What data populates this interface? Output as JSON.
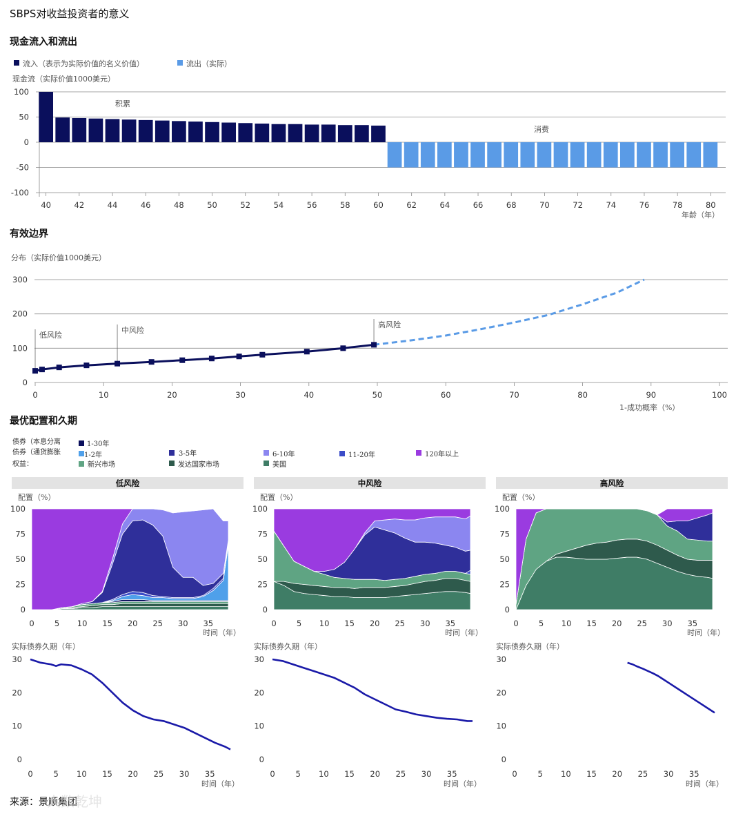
{
  "page": {
    "title": "SBPS对收益投资者的意义",
    "source": "来源：景顺集团",
    "watermark": "大数乾坤"
  },
  "colors": {
    "navy": "#0a0f5c",
    "lightblue": "#5a9be6",
    "dashed": "#5a9be6",
    "b1_30": "#0a0f5c",
    "b1_2": "#4fa0ea",
    "b3_5": "#2f2f9a",
    "b6_10": "#8b86f0",
    "b11_20": "#3b4cc8",
    "b120": "#9a3be0",
    "em": "#5fa483",
    "dev": "#2e5a4c",
    "us": "#3f7d66",
    "duration": "#1a1aa8",
    "panel": "#e3e3e3"
  },
  "chart_data": [
    {
      "type": "bar",
      "title": "现金流入和流出",
      "legend": [
        "流入（表示为实际价值的名义价值）",
        "流出（实际）"
      ],
      "ylabel": "现金流（实际价值1000美元）",
      "xlabel": "年龄（年）",
      "ylim": [
        -100,
        100
      ],
      "yticks": [
        100,
        50,
        0,
        -50,
        -100
      ],
      "xticks": [
        40,
        42,
        44,
        46,
        48,
        50,
        52,
        54,
        56,
        58,
        60,
        62,
        64,
        66,
        68,
        70,
        72,
        74,
        76,
        78,
        80
      ],
      "annotations": [
        "积累",
        "消费"
      ],
      "inflow": {
        "ages": [
          40,
          41,
          42,
          43,
          44,
          45,
          46,
          47,
          48,
          49,
          50,
          51,
          52,
          53,
          54,
          55,
          56,
          57,
          58,
          59,
          60
        ],
        "values": [
          100,
          49,
          48,
          47,
          46,
          45,
          44,
          43,
          42,
          41,
          40,
          39,
          38,
          37,
          36,
          36,
          35,
          35,
          34,
          34,
          33
        ]
      },
      "outflow": {
        "ages": [
          61,
          62,
          63,
          64,
          65,
          66,
          67,
          68,
          69,
          70,
          71,
          72,
          73,
          74,
          75,
          76,
          77,
          78,
          79,
          80
        ],
        "values": [
          -50,
          -50,
          -50,
          -50,
          -50,
          -50,
          -50,
          -50,
          -50,
          -50,
          -50,
          -50,
          -50,
          -50,
          -50,
          -50,
          -50,
          -50,
          -50,
          -50
        ]
      }
    },
    {
      "type": "line",
      "title": "有效边界",
      "ylabel": "分布（实际价值1000美元）",
      "xlabel": "1-成功概率（%）",
      "xlim": [
        0,
        100
      ],
      "ylim": [
        0,
        300
      ],
      "xticks": [
        0,
        10,
        20,
        30,
        40,
        50,
        60,
        70,
        80,
        90,
        100
      ],
      "yticks": [
        300,
        200,
        100,
        0
      ],
      "markers": [
        "低风险",
        "中风险",
        "高风险"
      ],
      "marker_x": [
        0,
        12,
        49.5
      ],
      "solid": {
        "x": [
          0,
          1,
          3.5,
          7.5,
          12,
          17,
          21.5,
          25.8,
          29.8,
          33.2,
          39.7,
          45,
          49.5
        ],
        "y": [
          34,
          38,
          44,
          50,
          55,
          60,
          65,
          70,
          76,
          81,
          90,
          100,
          110
        ]
      },
      "dashed": {
        "x": [
          49.5,
          55,
          60,
          65,
          70,
          75,
          80,
          85,
          89
        ],
        "y": [
          110,
          123,
          137,
          155,
          175,
          197,
          228,
          262,
          300
        ]
      }
    },
    {
      "type": "area",
      "title": "最优配置和久期",
      "legend_groups": [
        "债券（本息分离",
        "债券（通货膨胀",
        "权益："
      ],
      "legend": [
        "1-30年",
        "1-2年",
        "3-5年",
        "6-10年",
        "11-20年",
        "120年以上",
        "新兴市场",
        "发达国家市场",
        "美国"
      ],
      "panels": [
        "低风险",
        "中风险",
        "高风险"
      ],
      "ylabel": "配置（%）",
      "xlabel": "时间（年）",
      "xticks": [
        0,
        5,
        10,
        15,
        20,
        25,
        30,
        35
      ],
      "yticks": [
        100,
        75,
        50,
        25,
        0
      ]
    },
    {
      "type": "line",
      "title": "实际债券久期（年）",
      "xlabel": "时间（年）",
      "xticks": [
        0,
        5,
        10,
        15,
        20,
        25,
        30,
        35
      ],
      "yticks": [
        30,
        20,
        10,
        0
      ],
      "series": [
        {
          "name": "低风险",
          "x": [
            0,
            2,
            4,
            5,
            6,
            8,
            10,
            12,
            14,
            16,
            18,
            20,
            22,
            24,
            26,
            28,
            30,
            32,
            34,
            36,
            38,
            39
          ],
          "y": [
            30,
            29,
            28.5,
            28,
            28.5,
            28.2,
            27,
            25.5,
            23,
            20,
            17,
            14.7,
            13,
            12,
            11.5,
            10.5,
            9.5,
            8,
            6.5,
            5,
            3.8,
            3
          ]
        },
        {
          "name": "中风险",
          "x": [
            0,
            2,
            4,
            6,
            8,
            10,
            12,
            14,
            16,
            18,
            20,
            22,
            24,
            26,
            28,
            30,
            32,
            34,
            36,
            38,
            39
          ],
          "y": [
            30,
            29.5,
            28.5,
            27.5,
            26.5,
            25.5,
            24.5,
            23,
            21.5,
            19.5,
            18,
            16.5,
            15,
            14.3,
            13.5,
            13,
            12.5,
            12.2,
            12,
            11.5,
            11.5
          ]
        },
        {
          "name": "高风险",
          "x": [
            22,
            23,
            24,
            25,
            26,
            27,
            28,
            29,
            30,
            32,
            34,
            36,
            38,
            39
          ],
          "y": [
            29,
            28.5,
            27.8,
            27.2,
            26.5,
            25.8,
            25,
            24,
            23,
            21,
            19,
            17,
            15,
            14
          ]
        }
      ]
    }
  ],
  "texts": {
    "ylabel_cash": "现金流（实际价值1000美元）",
    "xlabel_age": "年龄（年）",
    "ylabel_dist": "分布（实际价值1000美元）",
    "xlabel_prob": "1-成功概率（%）",
    "ylabel_alloc": "配置（%）",
    "xlabel_time": "时间（年）",
    "ylabel_dur": "实际债券久期（年）",
    "section1": "现金流入和流出",
    "section2": "有效边界",
    "section3": "最优配置和久期"
  }
}
